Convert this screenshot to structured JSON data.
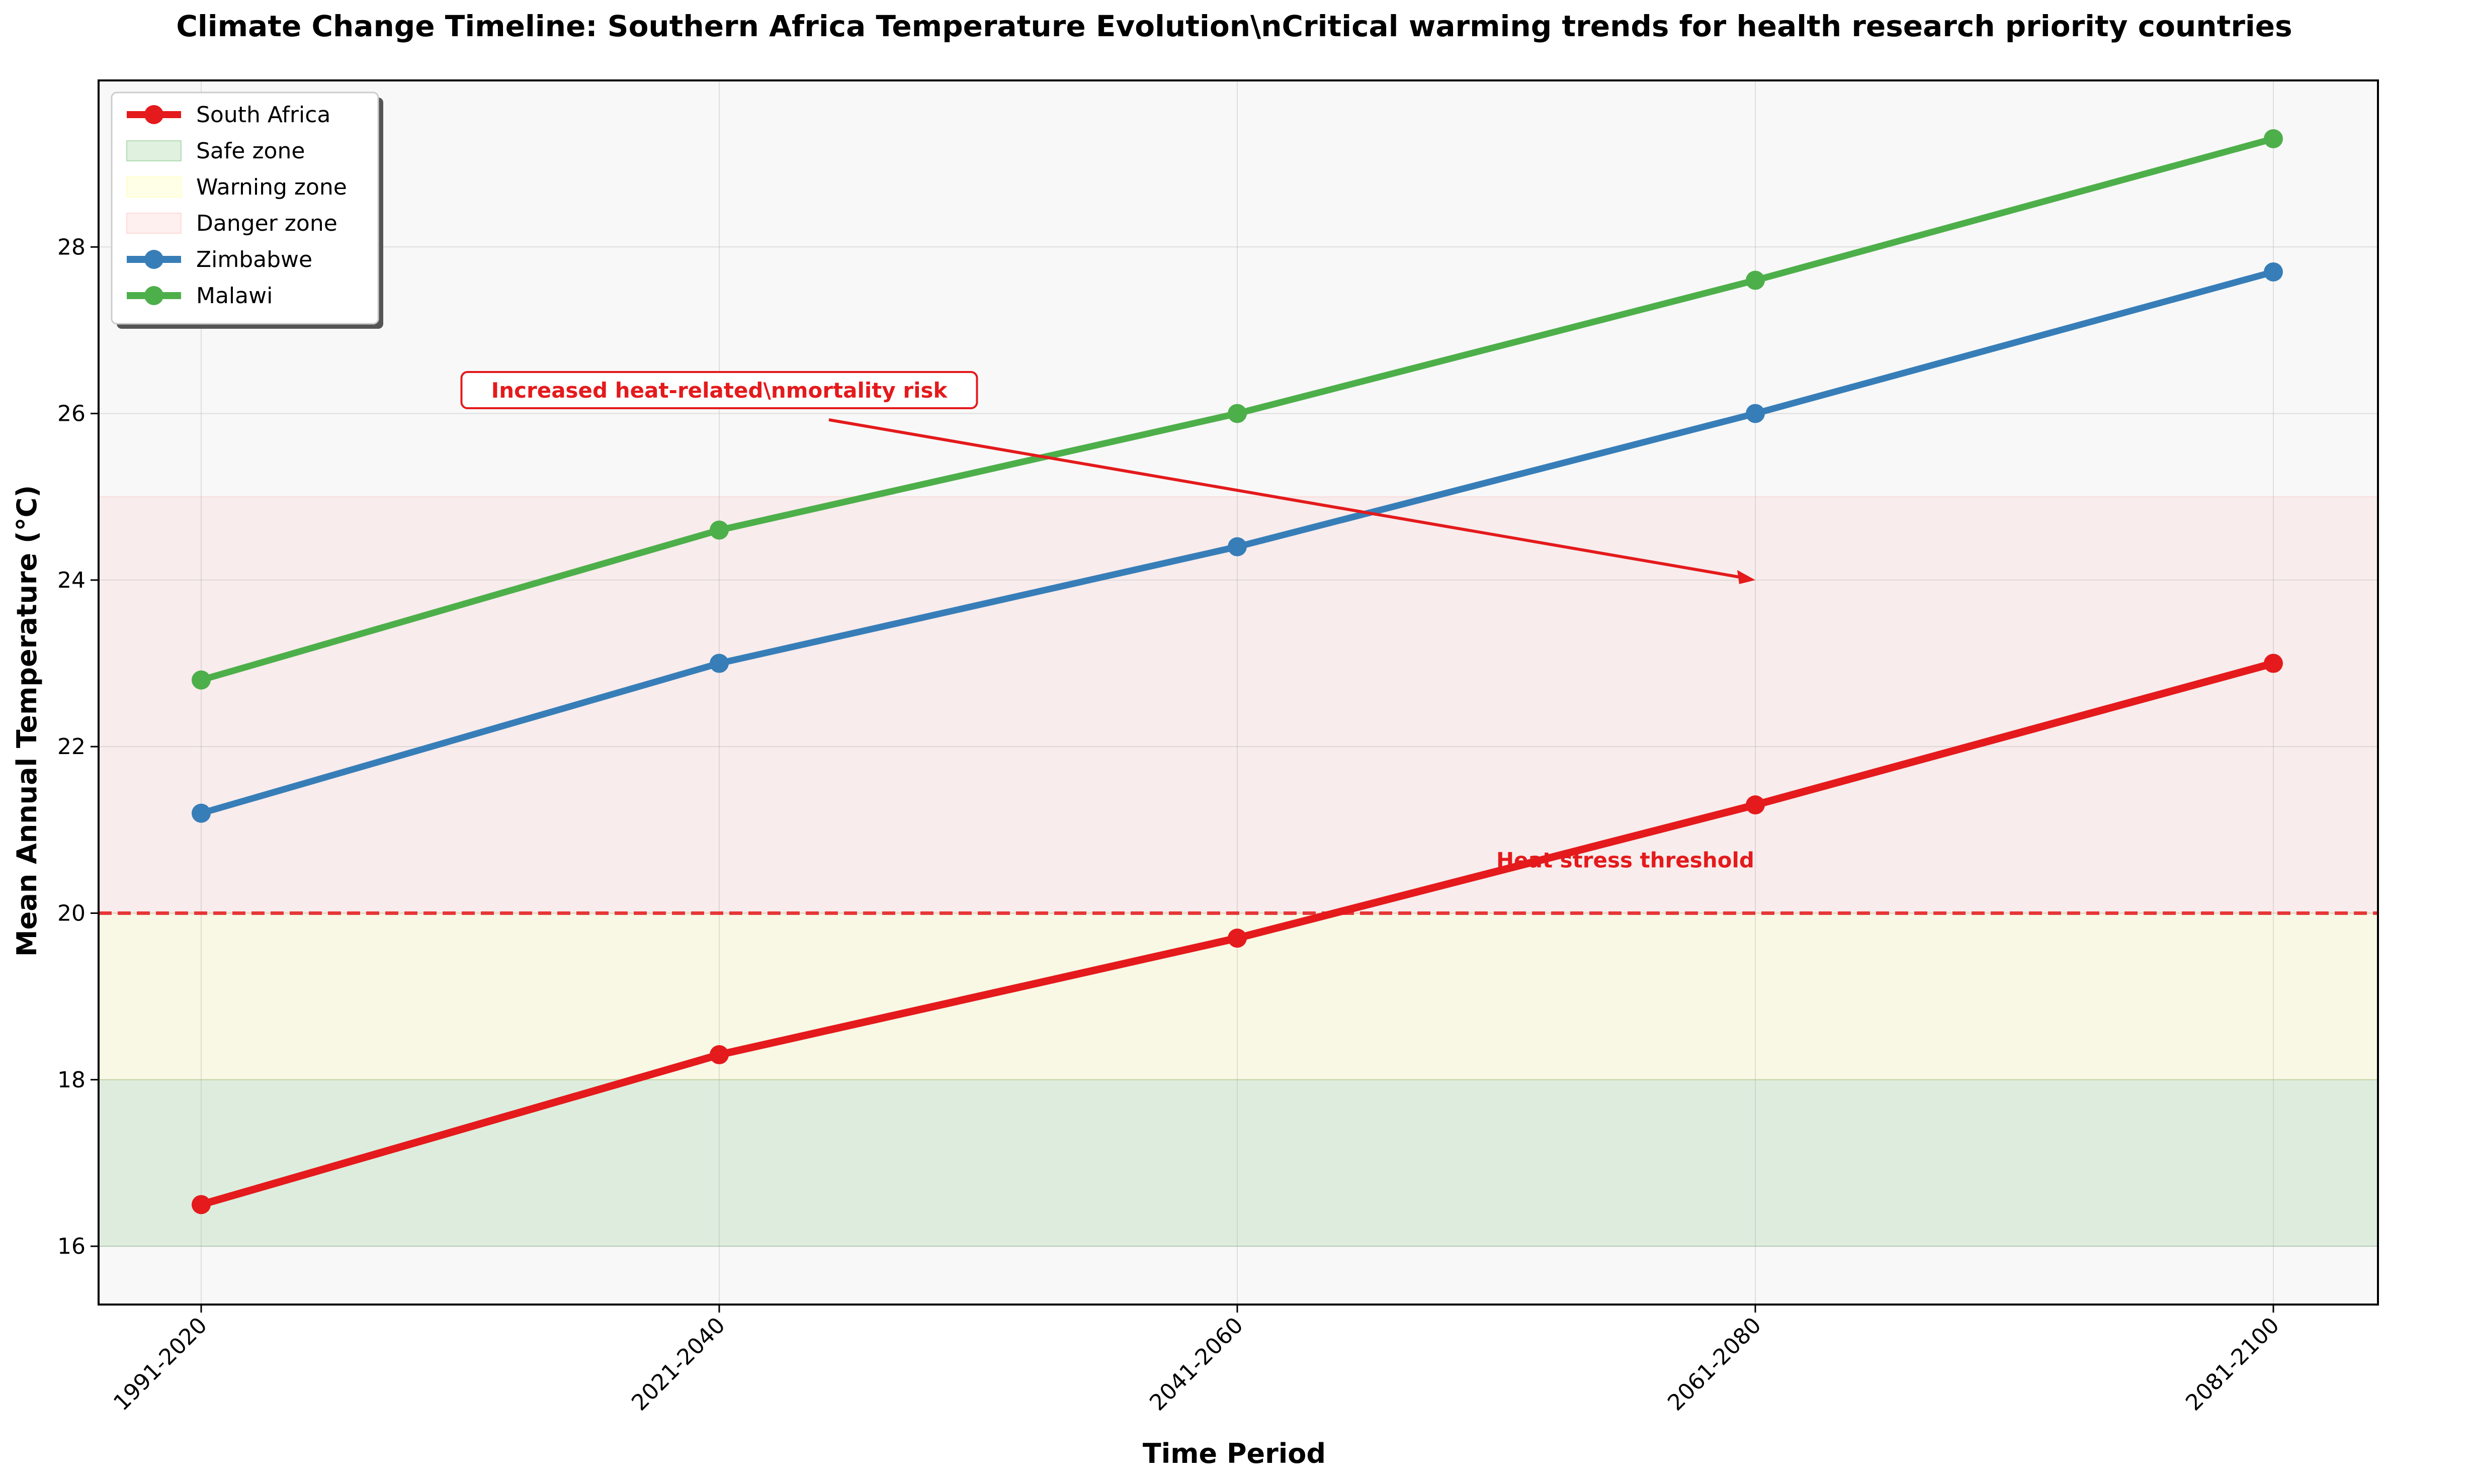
{
  "chart_data": {
    "type": "line",
    "title": "Climate Change Timeline: Southern Africa Temperature Evolution\\nCritical warming trends for health research priority countries",
    "xlabel": "Time Period",
    "ylabel": "Mean Annual Temperature (°C)",
    "categories": [
      "1991-2020",
      "2021-2040",
      "2041-2060",
      "2061-2080",
      "2081-2100"
    ],
    "ylim": [
      15.3,
      30.0
    ],
    "yticks": [
      16,
      18,
      20,
      22,
      24,
      26,
      28
    ],
    "grid": true,
    "legend_position": "top-left",
    "series": [
      {
        "name": "South Africa",
        "values": [
          16.5,
          18.3,
          19.7,
          21.3,
          23.0
        ],
        "color": "#e41a1c",
        "line_width": "thick"
      },
      {
        "name": "Zimbabwe",
        "values": [
          21.2,
          23.0,
          24.4,
          26.0,
          27.7
        ],
        "color": "#377eb8",
        "line_width": "normal"
      },
      {
        "name": "Malawi",
        "values": [
          22.8,
          24.6,
          26.0,
          27.6,
          29.3
        ],
        "color": "#4daf4a",
        "line_width": "normal"
      }
    ],
    "zones": [
      {
        "name": "Safe zone",
        "from": 16,
        "to": 18,
        "color": "#2ca02c"
      },
      {
        "name": "Warning zone",
        "from": 18,
        "to": 20,
        "color": "#ffff66"
      },
      {
        "name": "Danger zone",
        "from": 20,
        "to": 25,
        "color": "#ff9999"
      }
    ],
    "legend_order": [
      "South Africa",
      "Safe zone",
      "Warning zone",
      "Danger zone",
      "Zimbabwe",
      "Malawi"
    ],
    "threshold": {
      "value": 20,
      "label": "Heat stress threshold",
      "color": "#e41a1c"
    },
    "annotation": {
      "text": "Increased heat-related\\nmortality risk",
      "text_x_index": 1.0,
      "text_y": 26.1,
      "arrow_to_x_index": 3.0,
      "arrow_to_y": 24.0,
      "color": "#e41a1c"
    }
  }
}
